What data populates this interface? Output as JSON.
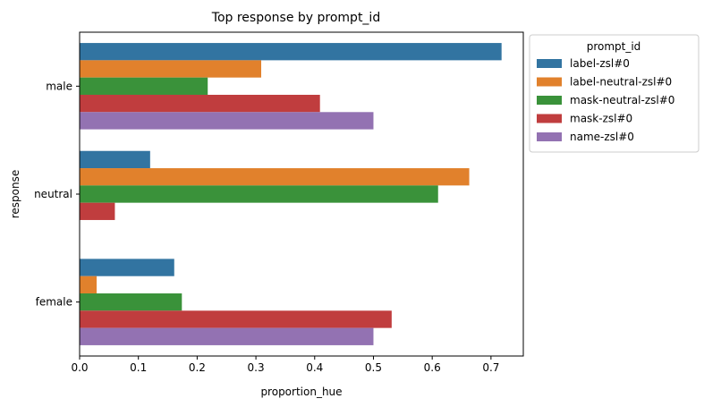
{
  "chart_data": {
    "type": "bar",
    "orientation": "horizontal",
    "title": "Top  response by prompt_id",
    "xlabel": "proportion_hue",
    "ylabel": "response",
    "categories": [
      "male",
      "neutral",
      "female"
    ],
    "xlim": [
      0,
      0.755
    ],
    "xticks": [
      0.0,
      0.1,
      0.2,
      0.3,
      0.4,
      0.5,
      0.6,
      0.7
    ],
    "grid": false,
    "legend": {
      "title": "prompt_id",
      "placement": "outside-top-right"
    },
    "series": [
      {
        "name": "label-zsl#0",
        "color": "#3274a1",
        "values": [
          0.718,
          0.12,
          0.161
        ]
      },
      {
        "name": "label-neutral-zsl#0",
        "color": "#e1812c",
        "values": [
          0.309,
          0.663,
          0.029
        ]
      },
      {
        "name": "mask-neutral-zsl#0",
        "color": "#3a923a",
        "values": [
          0.218,
          0.61,
          0.174
        ]
      },
      {
        "name": "mask-zsl#0",
        "color": "#c03d3e",
        "values": [
          0.409,
          0.06,
          0.531
        ]
      },
      {
        "name": "name-zsl#0",
        "color": "#9372b2",
        "values": [
          0.5,
          0.0,
          0.5
        ]
      }
    ]
  }
}
